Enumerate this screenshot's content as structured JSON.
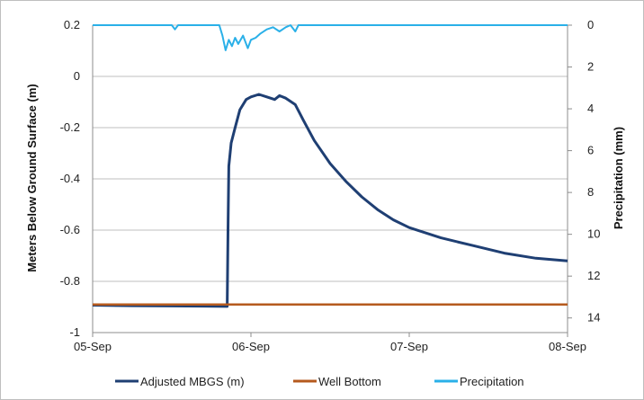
{
  "chart_data": {
    "type": "line",
    "x_axis": {
      "ticks": [
        "05-Sep",
        "06-Sep",
        "07-Sep",
        "08-Sep"
      ],
      "range": [
        "05-Sep",
        "08-Sep"
      ]
    },
    "y_axis_left": {
      "label": "Meters Below Ground Surface (m)",
      "range": [
        -1,
        0.2
      ],
      "ticks": [
        0.2,
        0,
        -0.2,
        -0.4,
        -0.6,
        -0.8,
        -1
      ],
      "tick_labels": [
        "0.2",
        "0",
        "-0.2",
        "-0.4",
        "-0.6",
        "-0.8",
        "-1"
      ]
    },
    "y_axis_right": {
      "label": "Precipitation (mm)",
      "range": [
        0,
        14
      ],
      "inverted": true,
      "ticks": [
        0,
        2,
        4,
        6,
        8,
        10,
        12,
        14
      ],
      "tick_labels": [
        "0",
        "2",
        "4",
        "6",
        "8",
        "10",
        "12",
        "14"
      ]
    },
    "grid": true,
    "legend_position": "bottom",
    "series": [
      {
        "name": "Adjusted MBGS (m)",
        "axis": "left",
        "color": "#1f3f73",
        "x_unit": "days since 05-Sep",
        "points": [
          [
            0,
            -0.893
          ],
          [
            0.25,
            -0.895
          ],
          [
            0.5,
            -0.896
          ],
          [
            0.7,
            -0.897
          ],
          [
            0.85,
            -0.898
          ],
          [
            0.855,
            -0.6
          ],
          [
            0.86,
            -0.35
          ],
          [
            0.875,
            -0.26
          ],
          [
            0.9,
            -0.2
          ],
          [
            0.93,
            -0.13
          ],
          [
            0.97,
            -0.09
          ],
          [
            1.0,
            -0.08
          ],
          [
            1.05,
            -0.07
          ],
          [
            1.1,
            -0.08
          ],
          [
            1.15,
            -0.09
          ],
          [
            1.18,
            -0.075
          ],
          [
            1.22,
            -0.085
          ],
          [
            1.28,
            -0.11
          ],
          [
            1.33,
            -0.17
          ],
          [
            1.4,
            -0.25
          ],
          [
            1.5,
            -0.34
          ],
          [
            1.6,
            -0.41
          ],
          [
            1.7,
            -0.47
          ],
          [
            1.8,
            -0.52
          ],
          [
            1.9,
            -0.56
          ],
          [
            2.0,
            -0.59
          ],
          [
            2.2,
            -0.63
          ],
          [
            2.4,
            -0.66
          ],
          [
            2.6,
            -0.69
          ],
          [
            2.8,
            -0.71
          ],
          [
            3.0,
            -0.72
          ]
        ]
      },
      {
        "name": "Well Bottom",
        "axis": "left",
        "color": "#b55a1e",
        "x_unit": "days since 05-Sep",
        "points": [
          [
            0,
            -0.89
          ],
          [
            3.0,
            -0.89
          ]
        ]
      },
      {
        "name": "Precipitation",
        "axis": "right",
        "color": "#2ab0e8",
        "x_unit": "days since 05-Sep",
        "points": [
          [
            0,
            0
          ],
          [
            0.5,
            0
          ],
          [
            0.52,
            0.2
          ],
          [
            0.54,
            0
          ],
          [
            0.8,
            0
          ],
          [
            0.82,
            0.5
          ],
          [
            0.84,
            1.2
          ],
          [
            0.86,
            0.7
          ],
          [
            0.88,
            1.0
          ],
          [
            0.9,
            0.6
          ],
          [
            0.92,
            0.9
          ],
          [
            0.95,
            0.5
          ],
          [
            0.98,
            1.1
          ],
          [
            1.0,
            0.7
          ],
          [
            1.03,
            0.6
          ],
          [
            1.06,
            0.4
          ],
          [
            1.1,
            0.2
          ],
          [
            1.14,
            0.1
          ],
          [
            1.18,
            0.3
          ],
          [
            1.22,
            0.1
          ],
          [
            1.25,
            0
          ],
          [
            1.28,
            0.3
          ],
          [
            1.3,
            0
          ],
          [
            3.0,
            0
          ]
        ]
      }
    ]
  }
}
